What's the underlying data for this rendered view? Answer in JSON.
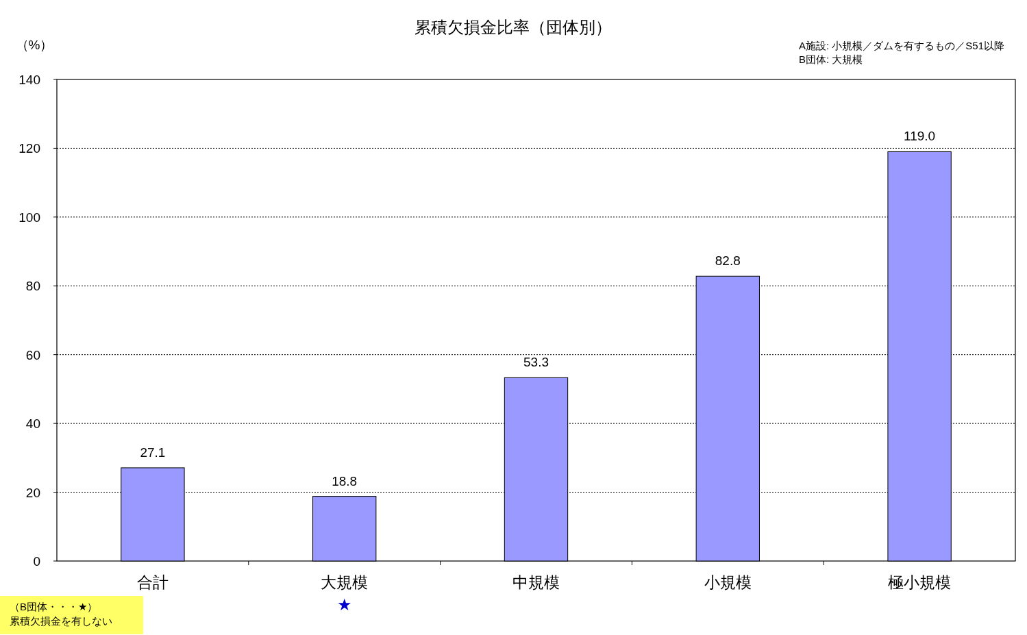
{
  "chart_data": {
    "type": "bar",
    "title": "累積欠損金比率（団体別）",
    "ylabel": "（%）",
    "categories": [
      "合計",
      "大規模",
      "中規模",
      "小規模",
      "極小規模"
    ],
    "values": [
      27.1,
      18.8,
      53.3,
      82.8,
      119.0
    ],
    "value_labels": [
      "27.1",
      "18.8",
      "53.3",
      "82.8",
      "119.0"
    ],
    "color": "#9999ff",
    "ylim": [
      0,
      140
    ],
    "yticks": [
      0,
      20,
      40,
      60,
      80,
      100,
      120,
      140
    ],
    "grid": "y",
    "annotations": [
      "A施設: 小規模／ダムを有するもの／S51以降",
      "B団体: 大規模",
      "（B団体・・・★）",
      "累積欠損金を有しない",
      "★"
    ]
  }
}
